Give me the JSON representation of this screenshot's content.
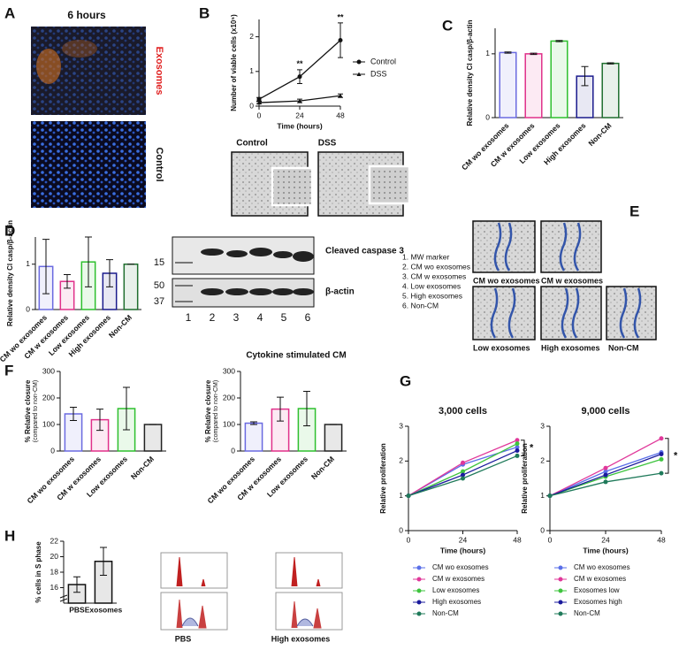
{
  "panel_labels": [
    "A",
    "B",
    "C",
    "D",
    "E",
    "F",
    "G",
    "H"
  ],
  "panel_a": {
    "title": "6 hours",
    "image_labels": [
      "Exosomes",
      "Control"
    ]
  },
  "panel_b_images": [
    "Control",
    "DSS"
  ],
  "panel_d_blot": {
    "bands": [
      "Cleaved caspase 3",
      "β-actin"
    ],
    "markers": [
      "15",
      "50",
      "37"
    ],
    "lanes": [
      "1",
      "2",
      "3",
      "4",
      "5",
      "6"
    ],
    "legend": [
      "1. MW marker",
      "2. CM wo exosomes",
      "3. CM w exosomes",
      "4. Low exosomes",
      "5. High exosomes",
      "6. Non-CM"
    ]
  },
  "panel_e": [
    "CM wo exosomes",
    "CM w exosomes",
    "Low exosomes",
    "High exosomes",
    "Non-CM"
  ],
  "panel_f_title": "Cytokine stimulated CM",
  "panel_h_images": [
    "PBS",
    "High exosomes"
  ],
  "chart_data": [
    {
      "type": "line",
      "xlabel": "Time (hours)",
      "ylabel": "Number of viable cells (x10⁵)",
      "x": [
        0,
        24,
        48
      ],
      "xlim": [
        0,
        48
      ],
      "xticks": [
        0,
        24,
        48
      ],
      "ylim": [
        0,
        2.5
      ],
      "yticks": [
        0,
        1,
        2
      ],
      "legend": "right",
      "annotations": [
        "**",
        "**"
      ],
      "series": [
        {
          "name": "Control",
          "color": "#111111",
          "marker": "circle",
          "values": [
            0.2,
            0.85,
            1.9
          ],
          "errors": [
            0.05,
            0.2,
            0.5
          ]
        },
        {
          "name": "DSS",
          "color": "#111111",
          "marker": "triangle",
          "values": [
            0.1,
            0.15,
            0.3
          ],
          "errors": [
            0.03,
            0.05,
            0.05
          ]
        }
      ]
    },
    {
      "type": "bar",
      "ylabel": "Relative density Cl casp/β-actin",
      "categories": [
        "CM wo exosomes",
        "CM w exosomes",
        "Low exosomes",
        "High exosomes",
        "Non-CM"
      ],
      "values": [
        1.02,
        1.0,
        1.2,
        0.65,
        0.85
      ],
      "errors": [
        0.01,
        0.01,
        0.01,
        0.15,
        0.01
      ],
      "colors": [
        "#6a6ae0",
        "#e0308a",
        "#2ec02e",
        "#1a1a8c",
        "#1f6e2e"
      ],
      "ylim": [
        0,
        1.4
      ],
      "yticks": [
        0,
        1
      ]
    },
    {
      "type": "bar",
      "ylabel": "Relative density Cl casp/β-actin",
      "categories": [
        "CM wo exosomes",
        "CM w exosomes",
        "Low exosomes",
        "High exosomes",
        "Non-CM"
      ],
      "values": [
        0.95,
        0.62,
        1.05,
        0.8,
        1.0
      ],
      "errors": [
        0.6,
        0.15,
        0.55,
        0.3,
        0
      ],
      "colors": [
        "#6a6ae0",
        "#e0308a",
        "#2ec02e",
        "#1a1a8c",
        "#1f6e2e"
      ],
      "ylim": [
        0,
        1.6
      ],
      "yticks": [
        0,
        1
      ]
    },
    {
      "type": "bar",
      "ylabel": "% Relative closure",
      "ylabel_note": "(compared to non-CM)",
      "categories": [
        "CM wo exosomes",
        "CM w exosomes",
        "Low exosomes",
        "Non-CM"
      ],
      "values": [
        140,
        118,
        160,
        100
      ],
      "errors": [
        25,
        40,
        80,
        0
      ],
      "colors": [
        "#6a6ae0",
        "#e0308a",
        "#2ec02e",
        "#222222"
      ],
      "ylim": [
        0,
        300
      ],
      "yticks": [
        0,
        100,
        200,
        300
      ]
    },
    {
      "type": "bar",
      "ylabel": "% Relative closure",
      "ylabel_note": "(compared to non-CM)",
      "categories": [
        "CM wo exosomes",
        "CM w exosomes",
        "Low exosomes",
        "Non-CM"
      ],
      "values": [
        105,
        158,
        160,
        100
      ],
      "errors": [
        5,
        45,
        65,
        0
      ],
      "colors": [
        "#6a6ae0",
        "#e0308a",
        "#2ec02e",
        "#222222"
      ],
      "ylim": [
        0,
        300
      ],
      "yticks": [
        0,
        100,
        200,
        300
      ]
    },
    {
      "type": "line",
      "title": "3,000 cells",
      "xlabel": "Time (hours)",
      "ylabel": "Relative proliferation",
      "x": [
        0,
        24,
        48
      ],
      "xlim": [
        0,
        48
      ],
      "xticks": [
        0,
        24,
        48
      ],
      "ylim": [
        0,
        3
      ],
      "yticks": [
        0,
        1,
        2,
        3
      ],
      "legend": "bottom",
      "annotations": [
        "*"
      ],
      "series": [
        {
          "name": "CM wo exosomes",
          "color": "#5a6fe8",
          "marker": "circle",
          "values": [
            1,
            1.9,
            2.4
          ]
        },
        {
          "name": "CM w exosomes",
          "color": "#e0389a",
          "marker": "circle",
          "values": [
            1,
            1.95,
            2.6
          ]
        },
        {
          "name": "Low exosomes",
          "color": "#3ec43e",
          "marker": "circle",
          "values": [
            1,
            1.7,
            2.5
          ]
        },
        {
          "name": "High exosomes",
          "color": "#1a1a9c",
          "marker": "circle",
          "values": [
            1,
            1.6,
            2.3
          ]
        },
        {
          "name": "Non-CM",
          "color": "#1f7a5a",
          "marker": "circle",
          "values": [
            1,
            1.5,
            2.15
          ]
        }
      ]
    },
    {
      "type": "line",
      "title": "9,000 cells",
      "xlabel": "Time (hours)",
      "ylabel": "Relative proliferation",
      "x": [
        0,
        24,
        48
      ],
      "xlim": [
        0,
        48
      ],
      "xticks": [
        0,
        24,
        48
      ],
      "ylim": [
        0,
        3
      ],
      "yticks": [
        0,
        1,
        2,
        3
      ],
      "legend": "bottom",
      "annotations": [
        "*"
      ],
      "series": [
        {
          "name": "CM wo exosomes",
          "color": "#5a6fe8",
          "marker": "circle",
          "values": [
            1,
            1.7,
            2.25
          ]
        },
        {
          "name": "CM w exosomes",
          "color": "#e0389a",
          "marker": "circle",
          "values": [
            1,
            1.8,
            2.65
          ]
        },
        {
          "name": "Exosomes low",
          "color": "#3ec43e",
          "marker": "circle",
          "values": [
            1,
            1.55,
            2.05
          ]
        },
        {
          "name": "Exosomes high",
          "color": "#1a1a9c",
          "marker": "circle",
          "values": [
            1,
            1.6,
            2.2
          ]
        },
        {
          "name": "Non-CM",
          "color": "#1f7a5a",
          "marker": "circle",
          "values": [
            1,
            1.4,
            1.65
          ]
        }
      ]
    },
    {
      "type": "bar",
      "ylabel": "% cells in S phase",
      "categories": [
        "PBS",
        "Exosomes"
      ],
      "values": [
        16.4,
        19.4
      ],
      "errors": [
        1.0,
        1.8
      ],
      "colors": [
        "#111111",
        "#111111"
      ],
      "ylim": [
        14,
        22
      ],
      "yticks": [
        16,
        18,
        20,
        22
      ],
      "axis_break": true
    }
  ]
}
